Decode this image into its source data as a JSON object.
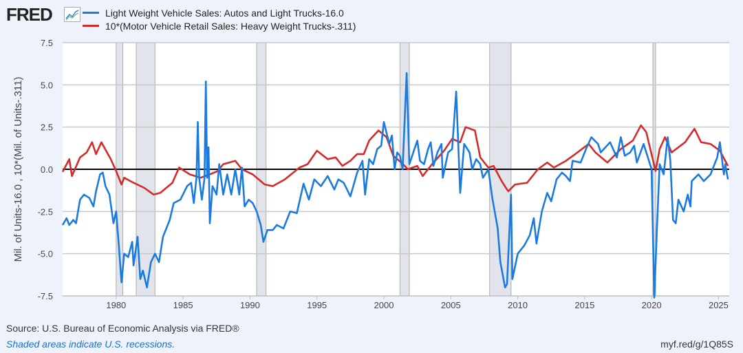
{
  "header": {
    "logo": "FRED",
    "logo_icon": "line-chart-icon"
  },
  "footer": {
    "source": "Source: U.S. Bureau of Economic Analysis via FRED®",
    "recession_note": "Shaded areas indicate U.S. recessions.",
    "short_link": "myf.red/g/1Q85S"
  },
  "chart_data": {
    "type": "line",
    "title": "",
    "xlabel": "",
    "ylabel": "Mil. of Units-16.0 , 10*(Mil. of Units-.311)",
    "xlim": [
      1976.0,
      2025.8
    ],
    "ylim": [
      -7.5,
      7.5
    ],
    "yticks": [
      "7.5",
      "5.0",
      "2.5",
      "0.0",
      "-2.5",
      "-5.0",
      "-7.5"
    ],
    "ytick_values": [
      7.5,
      5.0,
      2.5,
      0.0,
      -2.5,
      -5.0,
      -7.5
    ],
    "xticks": [
      "1980",
      "1985",
      "1990",
      "1995",
      "2000",
      "2005",
      "2010",
      "2015",
      "2020",
      "2025"
    ],
    "xtick_values": [
      1980,
      1985,
      1990,
      1995,
      2000,
      2005,
      2010,
      2015,
      2020,
      2025
    ],
    "grid": "horizontal",
    "legend_position": "top-left",
    "reference_line": 0,
    "recessions": [
      [
        1980.0,
        1980.5
      ],
      [
        1981.5,
        1982.9
      ],
      [
        1990.5,
        1991.2
      ],
      [
        2001.2,
        2001.9
      ],
      [
        2007.9,
        2009.5
      ],
      [
        2020.1,
        2020.3
      ]
    ],
    "series": [
      {
        "name": "Light Weight Vehicle Sales: Autos and Light Trucks-16.0",
        "color": "#1a7ae0",
        "points": [
          [
            1976.0,
            -3.3
          ],
          [
            1976.3,
            -2.9
          ],
          [
            1976.5,
            -3.3
          ],
          [
            1976.8,
            -3.0
          ],
          [
            1977.0,
            -3.2
          ],
          [
            1977.3,
            -1.8
          ],
          [
            1977.6,
            -1.5
          ],
          [
            1978.0,
            -1.7
          ],
          [
            1978.3,
            -2.2
          ],
          [
            1978.5,
            -1.3
          ],
          [
            1978.8,
            -0.3
          ],
          [
            1979.0,
            -0.2
          ],
          [
            1979.2,
            -1.0
          ],
          [
            1979.5,
            -1.5
          ],
          [
            1979.8,
            -3.2
          ],
          [
            1980.0,
            -2.5
          ],
          [
            1980.2,
            -4.5
          ],
          [
            1980.4,
            -6.7
          ],
          [
            1980.6,
            -5.0
          ],
          [
            1980.9,
            -5.2
          ],
          [
            1981.2,
            -4.3
          ],
          [
            1981.3,
            -5.7
          ],
          [
            1981.6,
            -4.0
          ],
          [
            1981.8,
            -6.5
          ],
          [
            1982.0,
            -6.0
          ],
          [
            1982.3,
            -7.0
          ],
          [
            1982.6,
            -5.5
          ],
          [
            1982.9,
            -5.0
          ],
          [
            1983.2,
            -5.5
          ],
          [
            1983.5,
            -4.0
          ],
          [
            1984.0,
            -3.0
          ],
          [
            1984.3,
            -2.0
          ],
          [
            1984.8,
            -1.8
          ],
          [
            1985.3,
            -1.0
          ],
          [
            1985.6,
            -0.8
          ],
          [
            1985.8,
            -2.0
          ],
          [
            1986.0,
            -0.5
          ],
          [
            1986.1,
            2.8
          ],
          [
            1986.2,
            -0.5
          ],
          [
            1986.4,
            -1.8
          ],
          [
            1986.6,
            -0.5
          ],
          [
            1986.7,
            5.2
          ],
          [
            1986.8,
            -0.5
          ],
          [
            1986.9,
            1.3
          ],
          [
            1987.0,
            -3.2
          ],
          [
            1987.2,
            -1.0
          ],
          [
            1987.5,
            -1.5
          ],
          [
            1987.7,
            0.3
          ],
          [
            1988.0,
            -1.5
          ],
          [
            1988.3,
            -0.3
          ],
          [
            1988.6,
            -1.5
          ],
          [
            1988.9,
            0.0
          ],
          [
            1989.2,
            -1.5
          ],
          [
            1989.4,
            0.1
          ],
          [
            1989.6,
            -2.2
          ],
          [
            1989.9,
            -1.8
          ],
          [
            1990.2,
            -2.0
          ],
          [
            1990.5,
            -2.5
          ],
          [
            1990.8,
            -3.3
          ],
          [
            1991.0,
            -4.3
          ],
          [
            1991.3,
            -3.6
          ],
          [
            1991.7,
            -3.6
          ],
          [
            1992.0,
            -3.3
          ],
          [
            1992.5,
            -3.5
          ],
          [
            1993.0,
            -2.5
          ],
          [
            1993.5,
            -2.6
          ],
          [
            1994.0,
            -0.85
          ],
          [
            1994.4,
            -1.8
          ],
          [
            1994.8,
            -0.6
          ],
          [
            1995.3,
            -1.0
          ],
          [
            1995.8,
            -0.4
          ],
          [
            1996.3,
            -1.2
          ],
          [
            1996.6,
            -0.6
          ],
          [
            1997.0,
            -0.8
          ],
          [
            1997.5,
            -1.6
          ],
          [
            1998.0,
            -0.2
          ],
          [
            1998.4,
            0.5
          ],
          [
            1998.6,
            -1.5
          ],
          [
            1998.9,
            0.6
          ],
          [
            1999.2,
            0.3
          ],
          [
            1999.5,
            1.2
          ],
          [
            1999.8,
            1.4
          ],
          [
            2000.0,
            2.8
          ],
          [
            2000.4,
            1.5
          ],
          [
            2000.6,
            2.0
          ],
          [
            2000.8,
            0.0
          ],
          [
            2001.0,
            1.0
          ],
          [
            2001.2,
            0.8
          ],
          [
            2001.4,
            0.0
          ],
          [
            2001.7,
            5.7
          ],
          [
            2001.9,
            0.3
          ],
          [
            2002.2,
            1.0
          ],
          [
            2002.5,
            1.7
          ],
          [
            2002.7,
            0.5
          ],
          [
            2003.0,
            0.3
          ],
          [
            2003.3,
            1.2
          ],
          [
            2003.5,
            1.6
          ],
          [
            2003.7,
            0.2
          ],
          [
            2004.0,
            1.0
          ],
          [
            2004.3,
            1.5
          ],
          [
            2004.4,
            -0.5
          ],
          [
            2004.8,
            1.0
          ],
          [
            2005.1,
            1.2
          ],
          [
            2005.4,
            4.6
          ],
          [
            2005.7,
            -1.4
          ],
          [
            2006.0,
            1.5
          ],
          [
            2006.4,
            1.0
          ],
          [
            2006.6,
            0.0
          ],
          [
            2006.9,
            0.6
          ],
          [
            2007.2,
            0.3
          ],
          [
            2007.4,
            -0.5
          ],
          [
            2007.8,
            0.0
          ],
          [
            2008.1,
            -1.7
          ],
          [
            2008.5,
            -3.5
          ],
          [
            2008.7,
            -5.5
          ],
          [
            2009.05,
            -7.0
          ],
          [
            2009.2,
            -6.8
          ],
          [
            2009.5,
            -1.5
          ],
          [
            2009.6,
            -6.5
          ],
          [
            2010.0,
            -5.0
          ],
          [
            2010.5,
            -4.5
          ],
          [
            2010.9,
            -3.9
          ],
          [
            2011.2,
            -2.9
          ],
          [
            2011.4,
            -4.4
          ],
          [
            2011.8,
            -2.5
          ],
          [
            2012.2,
            -1.4
          ],
          [
            2012.5,
            -1.9
          ],
          [
            2012.9,
            -0.6
          ],
          [
            2013.3,
            -0.2
          ],
          [
            2013.6,
            -0.4
          ],
          [
            2013.9,
            -0.7
          ],
          [
            2014.1,
            0.5
          ],
          [
            2014.7,
            0.4
          ],
          [
            2015.1,
            1.2
          ],
          [
            2015.5,
            1.9
          ],
          [
            2016.0,
            1.5
          ],
          [
            2016.2,
            1.0
          ],
          [
            2016.9,
            1.6
          ],
          [
            2017.4,
            0.7
          ],
          [
            2017.7,
            1.9
          ],
          [
            2018.0,
            0.8
          ],
          [
            2018.4,
            1.0
          ],
          [
            2018.7,
            1.4
          ],
          [
            2018.9,
            0.4
          ],
          [
            2019.4,
            1.5
          ],
          [
            2019.8,
            0.5
          ],
          [
            2020.0,
            0.0
          ],
          [
            2020.2,
            -7.6
          ],
          [
            2020.4,
            -3.5
          ],
          [
            2020.6,
            0.3
          ],
          [
            2020.9,
            -0.3
          ],
          [
            2021.2,
            1.9
          ],
          [
            2021.4,
            0.5
          ],
          [
            2021.6,
            -3.0
          ],
          [
            2021.8,
            -3.2
          ],
          [
            2022.0,
            -1.8
          ],
          [
            2022.4,
            -2.5
          ],
          [
            2022.7,
            -1.5
          ],
          [
            2022.9,
            -2.2
          ],
          [
            2023.0,
            -0.7
          ],
          [
            2023.5,
            -0.3
          ],
          [
            2023.9,
            -0.7
          ],
          [
            2024.4,
            -0.3
          ],
          [
            2024.9,
            0.7
          ],
          [
            2025.1,
            1.6
          ],
          [
            2025.4,
            -0.3
          ],
          [
            2025.5,
            0.3
          ],
          [
            2025.7,
            -0.6
          ]
        ]
      },
      {
        "name": "10*(Motor Vehicle Retail Sales: Heavy Weight Trucks-.311)",
        "color": "#d42a2a",
        "points": [
          [
            1976.0,
            -0.15
          ],
          [
            1976.5,
            0.6
          ],
          [
            1976.7,
            -0.4
          ],
          [
            1977.3,
            0.7
          ],
          [
            1977.8,
            1.0
          ],
          [
            1978.2,
            1.6
          ],
          [
            1978.5,
            0.9
          ],
          [
            1978.9,
            1.6
          ],
          [
            1979.6,
            0.6
          ],
          [
            1980.0,
            -0.1
          ],
          [
            1980.4,
            -0.9
          ],
          [
            1980.6,
            -0.5
          ],
          [
            1981.3,
            -0.8
          ],
          [
            1982.1,
            -1.1
          ],
          [
            1982.8,
            -1.5
          ],
          [
            1983.3,
            -1.4
          ],
          [
            1984.2,
            -0.8
          ],
          [
            1984.7,
            0.1
          ],
          [
            1985.5,
            -0.3
          ],
          [
            1986.3,
            -0.5
          ],
          [
            1987.0,
            -0.3
          ],
          [
            1987.6,
            -0.1
          ],
          [
            1988.0,
            0.3
          ],
          [
            1988.9,
            0.5
          ],
          [
            1989.4,
            0.0
          ],
          [
            1990.2,
            -0.3
          ],
          [
            1991.1,
            -0.9
          ],
          [
            1991.7,
            -1.0
          ],
          [
            1992.6,
            -0.6
          ],
          [
            1993.7,
            0.1
          ],
          [
            1994.3,
            0.3
          ],
          [
            1995.0,
            1.1
          ],
          [
            1995.8,
            0.6
          ],
          [
            1996.4,
            0.7
          ],
          [
            1996.9,
            0.2
          ],
          [
            1997.5,
            0.5
          ],
          [
            1998.0,
            0.9
          ],
          [
            1998.5,
            0.9
          ],
          [
            1998.9,
            1.7
          ],
          [
            1999.6,
            2.3
          ],
          [
            2000.2,
            1.9
          ],
          [
            2000.7,
            0.8
          ],
          [
            2001.3,
            0.4
          ],
          [
            2001.8,
            0.0
          ],
          [
            2002.5,
            0.2
          ],
          [
            2002.9,
            -0.4
          ],
          [
            2003.6,
            0.3
          ],
          [
            2004.5,
            1.1
          ],
          [
            2005.1,
            1.8
          ],
          [
            2005.7,
            1.6
          ],
          [
            2006.1,
            2.5
          ],
          [
            2006.8,
            2.3
          ],
          [
            2007.2,
            0.7
          ],
          [
            2007.8,
            0.1
          ],
          [
            2008.2,
            0.2
          ],
          [
            2008.8,
            -0.7
          ],
          [
            2009.2,
            -1.2
          ],
          [
            2009.3,
            -1.3
          ],
          [
            2009.8,
            -0.9
          ],
          [
            2010.7,
            -0.8
          ],
          [
            2011.5,
            0.0
          ],
          [
            2012.2,
            0.4
          ],
          [
            2012.7,
            0.1
          ],
          [
            2013.6,
            0.5
          ],
          [
            2014.3,
            0.9
          ],
          [
            2015.3,
            1.5
          ],
          [
            2015.8,
            1.0
          ],
          [
            2016.7,
            0.4
          ],
          [
            2017.7,
            1.2
          ],
          [
            2018.6,
            1.7
          ],
          [
            2019.2,
            2.6
          ],
          [
            2019.6,
            2.2
          ],
          [
            2019.9,
            1.2
          ],
          [
            2020.3,
            -0.1
          ],
          [
            2020.6,
            1.2
          ],
          [
            2021.0,
            1.9
          ],
          [
            2021.5,
            1.0
          ],
          [
            2022.5,
            1.6
          ],
          [
            2023.2,
            2.4
          ],
          [
            2023.7,
            1.6
          ],
          [
            2024.4,
            1.5
          ],
          [
            2025.1,
            1.1
          ],
          [
            2025.7,
            0.2
          ]
        ]
      }
    ]
  }
}
